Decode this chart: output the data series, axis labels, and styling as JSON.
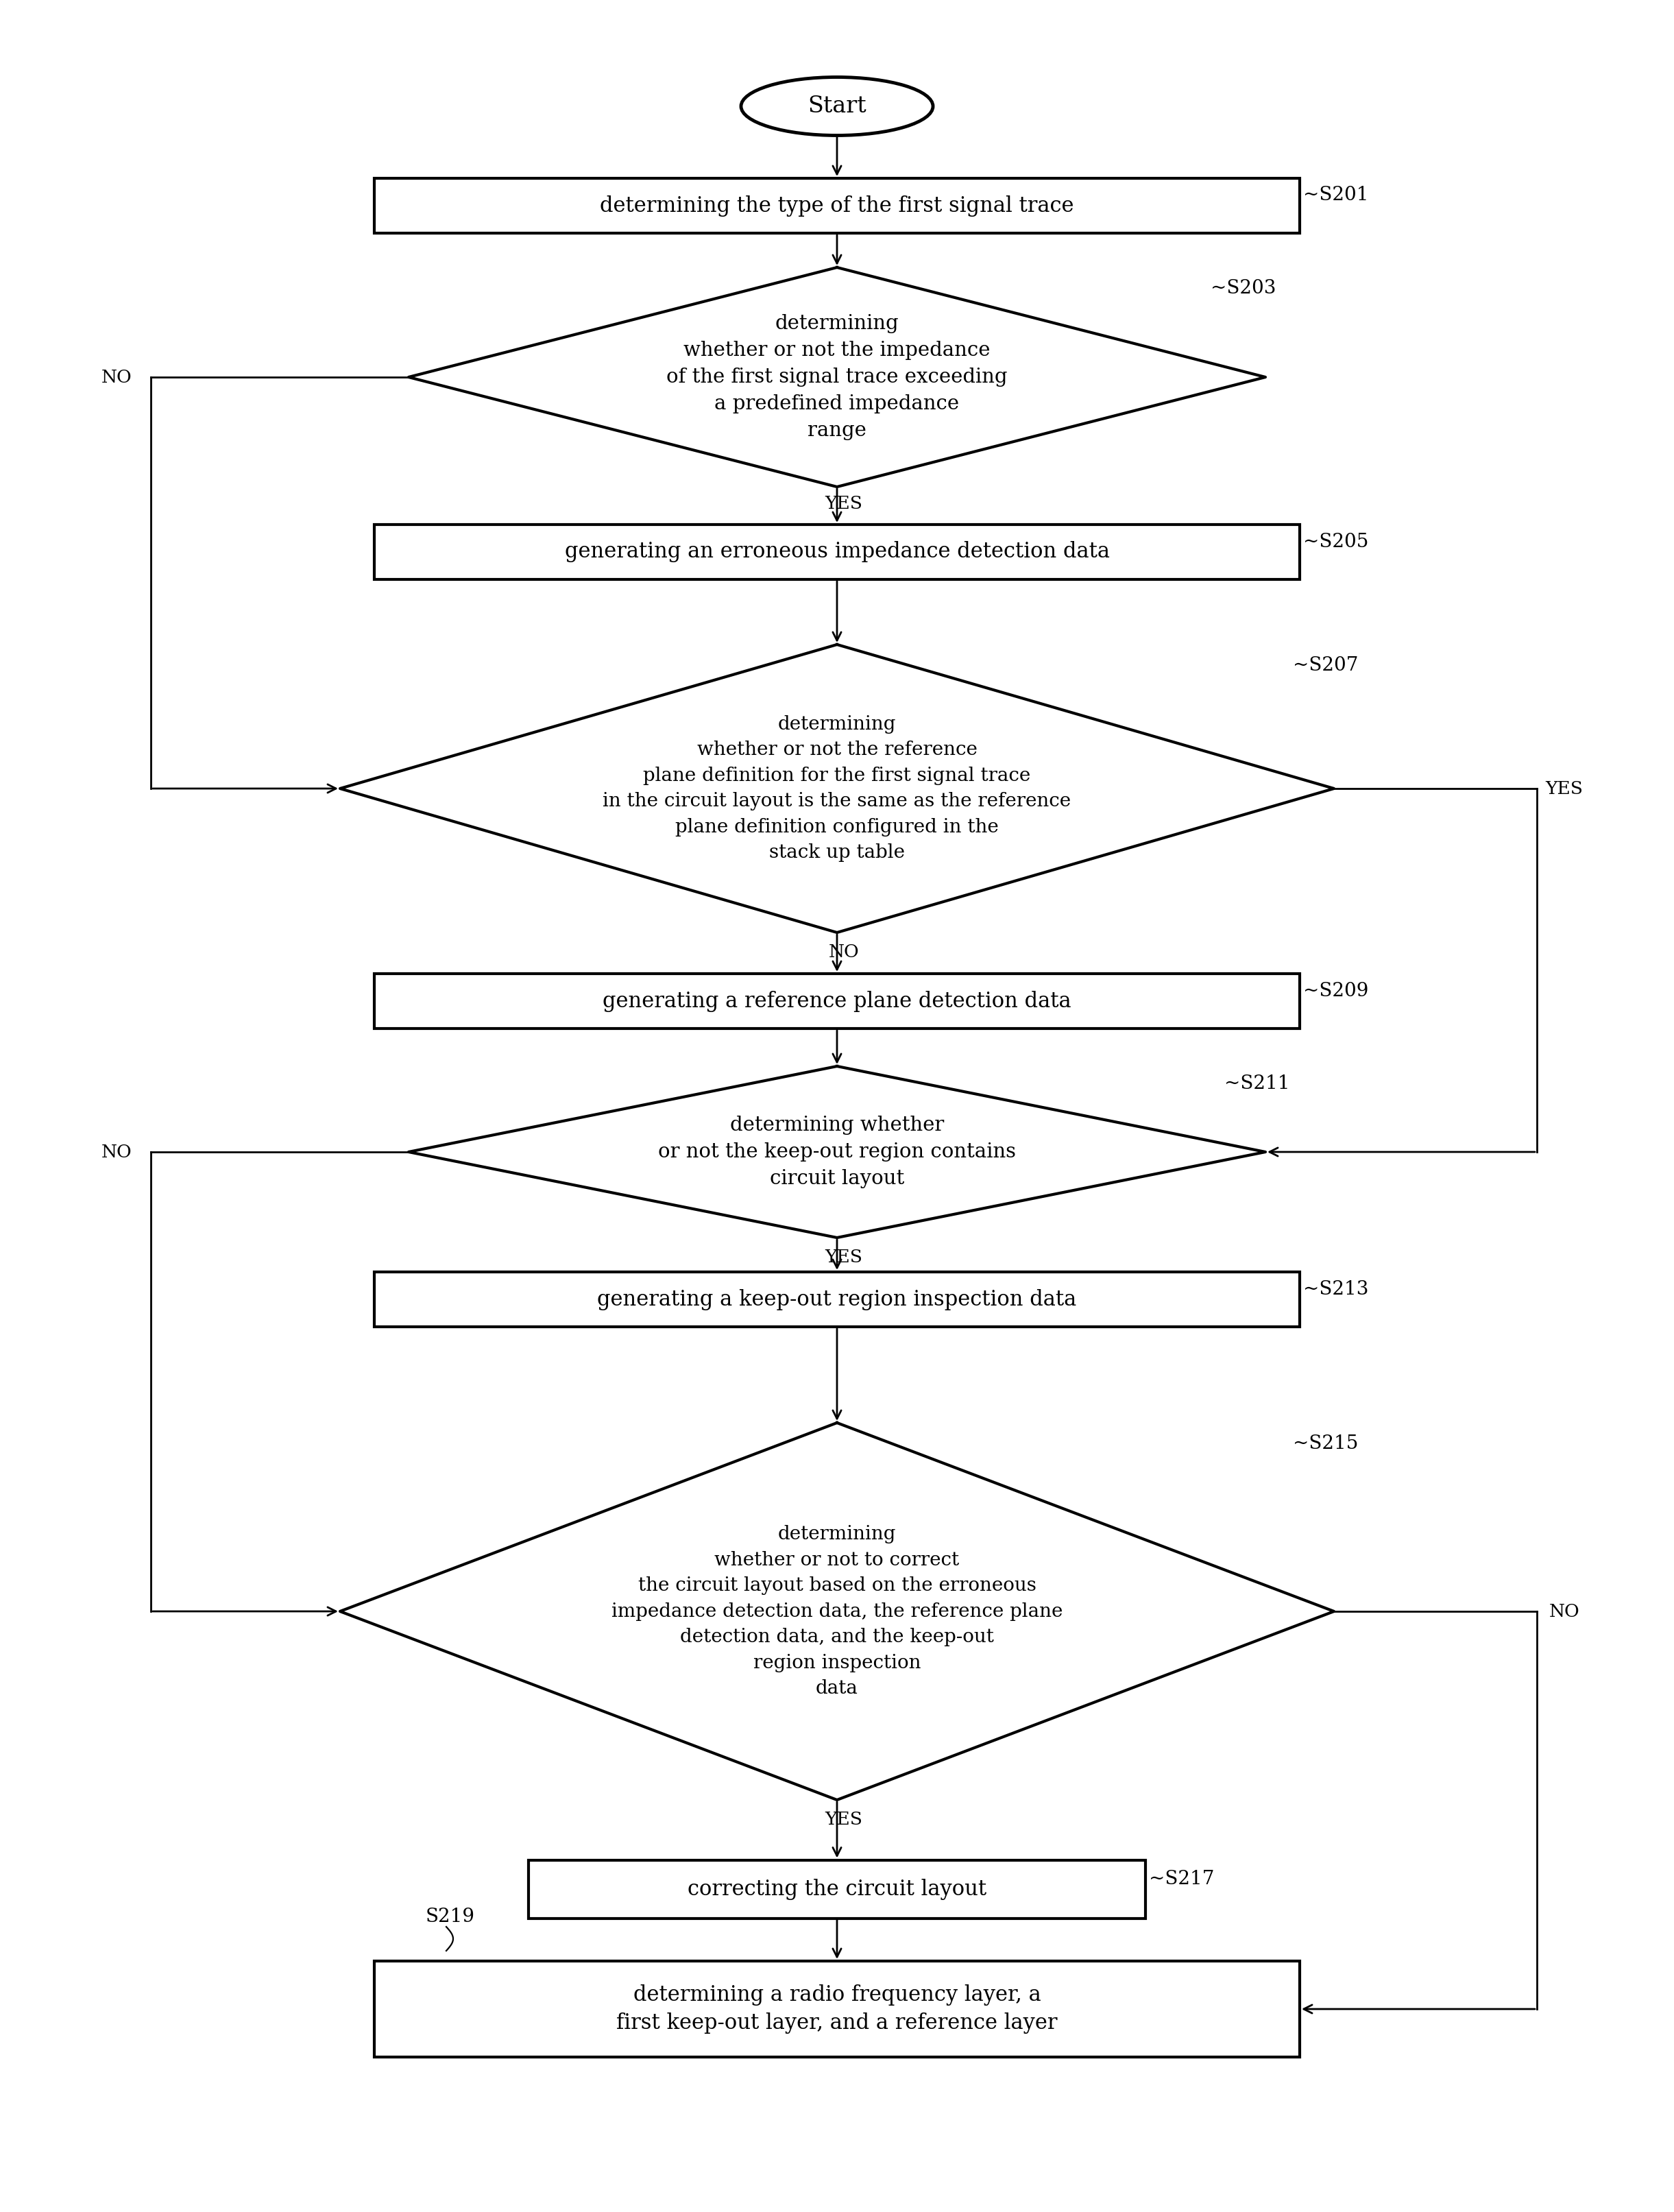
{
  "bg_color": "#ffffff",
  "line_color": "#000000",
  "text_color": "#000000",
  "fig_width": 24.42,
  "fig_height": 32.26,
  "font_family": "DejaVu Serif",
  "nodes": {
    "start": {
      "label": "Start"
    },
    "s201": {
      "label": "determining the type of the first signal trace",
      "ref": "S201"
    },
    "s203": {
      "label": "determining\nwhether or not the impedance\nof the first signal trace exceeding\na predefined impedance\nrange",
      "ref": "S203"
    },
    "s205": {
      "label": "generating an erroneous impedance detection data",
      "ref": "S205"
    },
    "s207": {
      "label": "determining\nwhether or not the reference\nplane definition for the first signal trace\nin the circuit layout is the same as the reference\nplane definition configured in the\nstack up table",
      "ref": "S207"
    },
    "s209": {
      "label": "generating a reference plane detection data",
      "ref": "S209"
    },
    "s211": {
      "label": "determining whether\nor not the keep-out region contains\ncircuit layout",
      "ref": "S211"
    },
    "s213": {
      "label": "generating a keep-out region inspection data",
      "ref": "S213"
    },
    "s215": {
      "label": "determining\nwhether or not to correct\nthe circuit layout based on the erroneous\nimpedance detection data, the reference plane\ndetection data, and the keep-out\nregion inspection\ndata",
      "ref": "S215"
    },
    "s217": {
      "label": "correcting the circuit layout",
      "ref": "S217"
    },
    "s219": {
      "label": "determining a radio frequency layer, a\nfirst keep-out layer, and a reference layer",
      "ref": "S219"
    }
  }
}
